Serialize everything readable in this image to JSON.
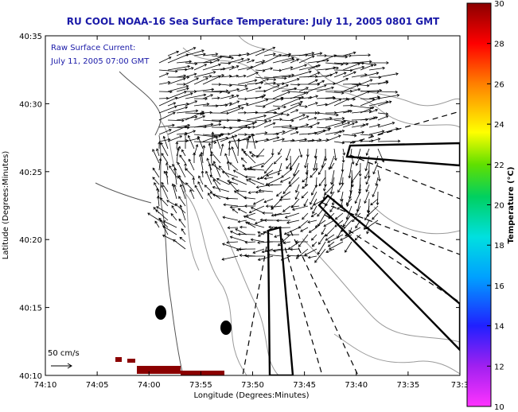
{
  "chart_data": {
    "type": "map",
    "title": "RU COOL  NOAA-16  Sea Surface Temperature:  July 11, 2005 0801 GMT",
    "annotation_lines": [
      "Raw Surface Current:",
      "July 11, 2005 07:00 GMT"
    ],
    "xlabel": "Longitude (Degrees:Minutes)",
    "ylabel": "Latitude (Degrees:Minutes)",
    "x_ticks": [
      "74:10",
      "74:05",
      "74:00",
      "73:55",
      "73:50",
      "73:45",
      "73:40",
      "73:35",
      "73:3"
    ],
    "y_ticks": [
      "40:35",
      "40:30",
      "40:25",
      "40:20",
      "40:15",
      "40:10"
    ],
    "xlim_minutes_west": [
      10,
      -30
    ],
    "ylim_minutes_north": [
      10,
      35
    ],
    "scale_label": "50 cm/s",
    "colorbar": {
      "label": "Temperature (°C)",
      "range": [
        10,
        30
      ],
      "ticks": [
        "30",
        "28",
        "26",
        "24",
        "22",
        "20",
        "18",
        "16",
        "14",
        "12",
        "10"
      ]
    },
    "colors": {
      "title": "#1a1aa8",
      "land_patch": "#8b0000",
      "contour": "#9a9a9a"
    }
  }
}
